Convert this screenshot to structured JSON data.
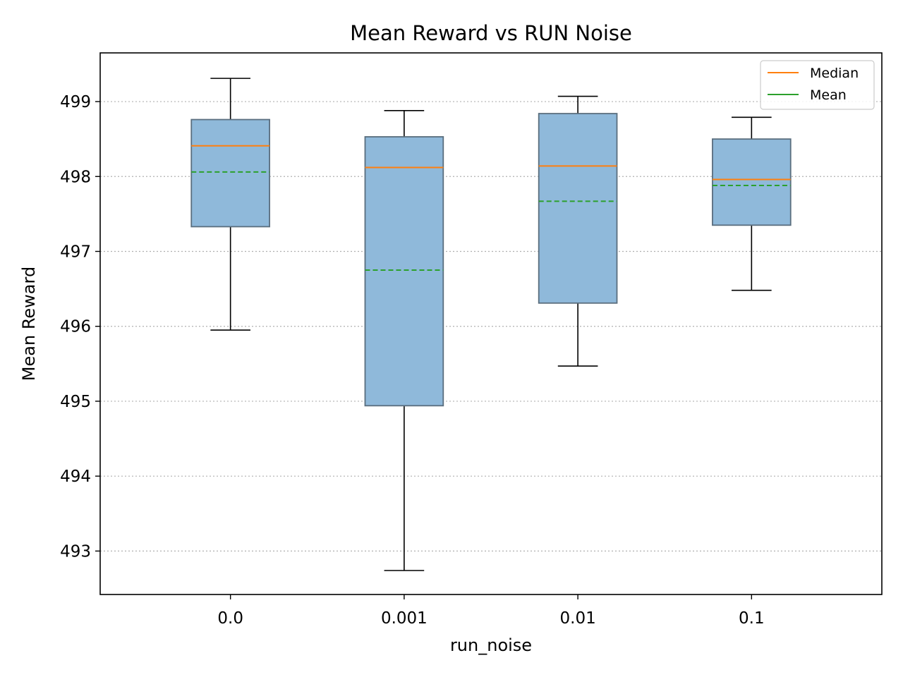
{
  "chart_data": {
    "type": "box",
    "title": "Mean Reward vs RUN Noise",
    "xlabel": "run_noise",
    "ylabel": "Mean Reward",
    "categories": [
      "0.0",
      "0.001",
      "0.01",
      "0.1"
    ],
    "ylim": [
      492.42,
      499.65
    ],
    "yticks": [
      493,
      494,
      495,
      496,
      497,
      498,
      499
    ],
    "grid": "y-dotted",
    "legend": {
      "placement": "top-right",
      "entries": [
        {
          "label": "Median",
          "color": "#ff7f0e",
          "style": "solid"
        },
        {
          "label": "Mean",
          "color": "#2ca02c",
          "style": "dashed"
        }
      ]
    },
    "boxes": [
      {
        "category": "0.0",
        "whisker_low": 495.95,
        "q1": 497.33,
        "median": 498.41,
        "q3": 498.76,
        "whisker_high": 499.31,
        "mean": 498.06
      },
      {
        "category": "0.001",
        "whisker_low": 492.74,
        "q1": 494.94,
        "median": 498.12,
        "q3": 498.53,
        "whisker_high": 498.88,
        "mean": 496.75
      },
      {
        "category": "0.01",
        "whisker_low": 495.47,
        "q1": 496.31,
        "median": 498.14,
        "q3": 498.84,
        "whisker_high": 499.07,
        "mean": 497.67
      },
      {
        "category": "0.1",
        "whisker_low": 496.48,
        "q1": 497.35,
        "median": 497.96,
        "q3": 498.5,
        "whisker_high": 498.79,
        "mean": 497.88
      }
    ],
    "colors": {
      "box_fill": "#8fb9da",
      "box_edge": "#5a6e7e",
      "median": "#ff7f0e",
      "mean": "#2ca02c",
      "grid": "#b0b0b0"
    }
  }
}
